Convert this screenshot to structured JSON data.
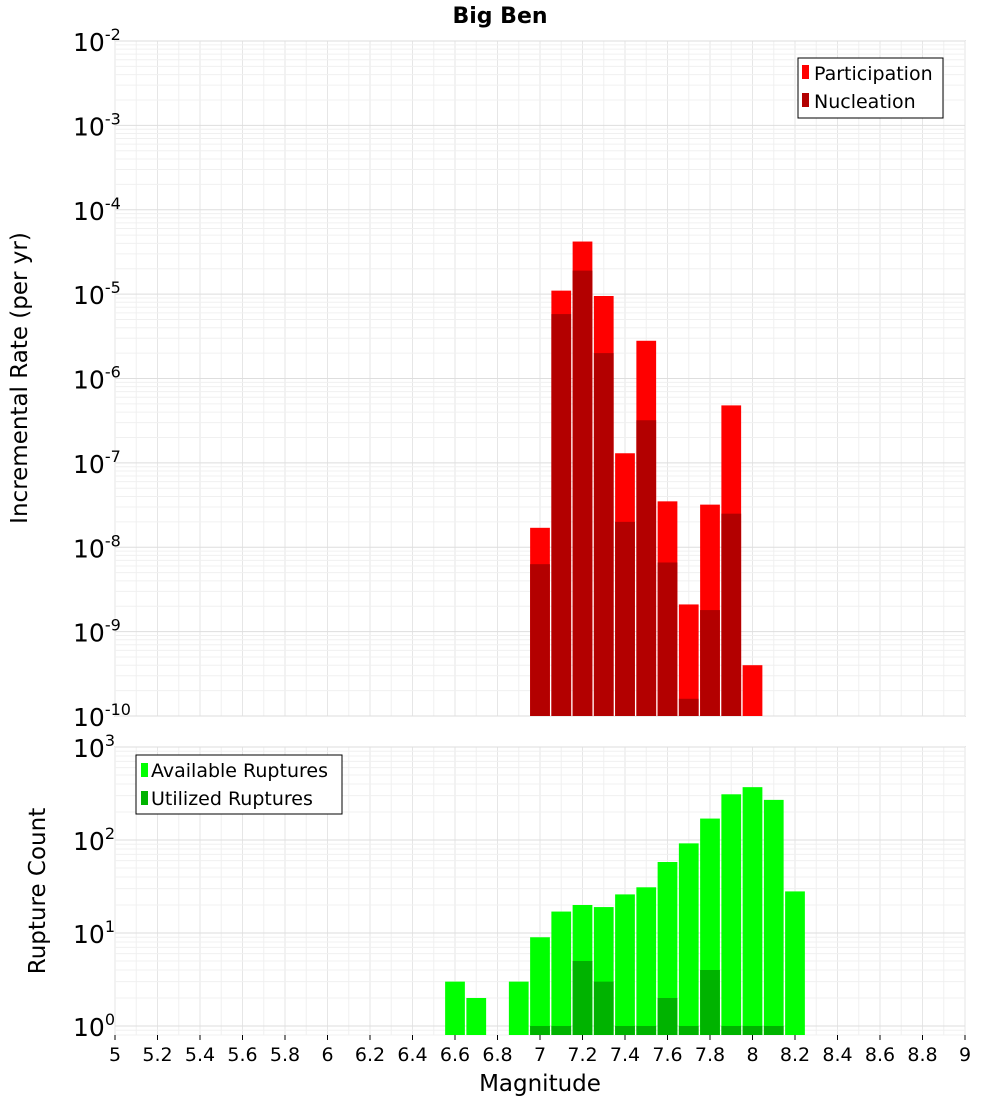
{
  "chart_data": [
    {
      "type": "bar",
      "title": "Big Ben",
      "xlabel": "",
      "ylabel": "Incremental Rate (per yr)",
      "y_scale": "log",
      "ylim": [
        1e-10,
        0.01
      ],
      "xlim": [
        5,
        9
      ],
      "legend_position": "top-right",
      "grid": true,
      "x": [
        7.0,
        7.1,
        7.2,
        7.3,
        7.4,
        7.5,
        7.6,
        7.7,
        7.8,
        7.9,
        8.0
      ],
      "series": [
        {
          "name": "Participation",
          "color": "#ff0000",
          "values": [
            1.7e-08,
            1.1e-05,
            4.2e-05,
            9.5e-06,
            1.3e-07,
            2.8e-06,
            3.5e-08,
            2.1e-09,
            3.2e-08,
            4.8e-07,
            4e-10
          ]
        },
        {
          "name": "Nucleation",
          "color": "#b30000",
          "values": [
            6.3e-09,
            5.8e-06,
            1.9e-05,
            2e-06,
            2e-08,
            3.2e-07,
            6.6e-09,
            1.6e-10,
            1.8e-09,
            2.5e-08,
            null
          ]
        }
      ],
      "yticks": [
        "10-10",
        "10-9",
        "10-8",
        "10-7",
        "10-6",
        "10-5",
        "10-4",
        "10-3",
        "10-2"
      ]
    },
    {
      "type": "bar",
      "title": "",
      "xlabel": "Magnitude",
      "ylabel": "Rupture Count",
      "y_scale": "log",
      "ylim": [
        0.8,
        1000
      ],
      "xlim": [
        5,
        9
      ],
      "legend_position": "top-left",
      "grid": true,
      "x": [
        6.6,
        6.7,
        6.8,
        6.9,
        7.0,
        7.1,
        7.2,
        7.3,
        7.4,
        7.5,
        7.6,
        7.7,
        7.8,
        7.9,
        8.0,
        8.1,
        8.2
      ],
      "series": [
        {
          "name": "Available Ruptures",
          "color": "#00ff00",
          "values": [
            3,
            2,
            null,
            3,
            9,
            17,
            20,
            19,
            26,
            31,
            58,
            92,
            170,
            310,
            370,
            270,
            28
          ]
        },
        {
          "name": "Utilized Ruptures",
          "color": "#00b300",
          "values": [
            null,
            null,
            null,
            null,
            1,
            1,
            5,
            3,
            1,
            1,
            2,
            1,
            4,
            1,
            1,
            1,
            null
          ]
        }
      ],
      "xticks": [
        "5",
        "5.2",
        "5.4",
        "5.6",
        "5.8",
        "6",
        "6.2",
        "6.4",
        "6.6",
        "6.8",
        "7",
        "7.2",
        "7.4",
        "7.6",
        "7.8",
        "8",
        "8.2",
        "8.4",
        "8.6",
        "8.8",
        "9"
      ],
      "yticks": [
        "100",
        "101",
        "102",
        "103"
      ]
    }
  ]
}
